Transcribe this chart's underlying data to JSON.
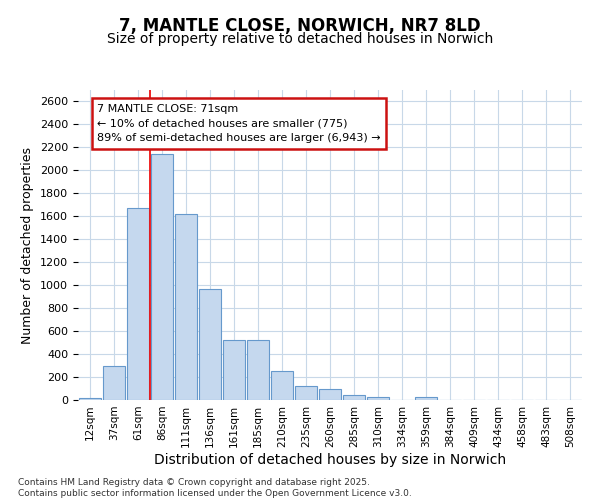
{
  "title1": "7, MANTLE CLOSE, NORWICH, NR7 8LD",
  "title2": "Size of property relative to detached houses in Norwich",
  "xlabel": "Distribution of detached houses by size in Norwich",
  "ylabel": "Number of detached properties",
  "categories": [
    "12sqm",
    "37sqm",
    "61sqm",
    "86sqm",
    "111sqm",
    "136sqm",
    "161sqm",
    "185sqm",
    "210sqm",
    "235sqm",
    "260sqm",
    "285sqm",
    "310sqm",
    "334sqm",
    "359sqm",
    "384sqm",
    "409sqm",
    "434sqm",
    "458sqm",
    "483sqm",
    "508sqm"
  ],
  "values": [
    20,
    300,
    1670,
    2140,
    1620,
    970,
    520,
    520,
    250,
    120,
    100,
    40,
    30,
    0,
    30,
    0,
    0,
    0,
    0,
    0,
    0
  ],
  "bar_color": "#c5d8ee",
  "bar_edge_color": "#6699cc",
  "grid_color": "#c8d8e8",
  "vline_color": "#ee1111",
  "vline_xidx": 2,
  "annotation_text": "7 MANTLE CLOSE: 71sqm\n← 10% of detached houses are smaller (775)\n89% of semi-detached houses are larger (6,943) →",
  "annotation_box_color": "white",
  "annotation_box_edge": "#cc1111",
  "ylim": [
    0,
    2700
  ],
  "yticks": [
    0,
    200,
    400,
    600,
    800,
    1000,
    1200,
    1400,
    1600,
    1800,
    2000,
    2200,
    2400,
    2600
  ],
  "footer": "Contains HM Land Registry data © Crown copyright and database right 2025.\nContains public sector information licensed under the Open Government Licence v3.0.",
  "bg_color": "#ffffff",
  "title1_fontsize": 12,
  "title2_fontsize": 10,
  "ylabel_fontsize": 9,
  "xlabel_fontsize": 10
}
